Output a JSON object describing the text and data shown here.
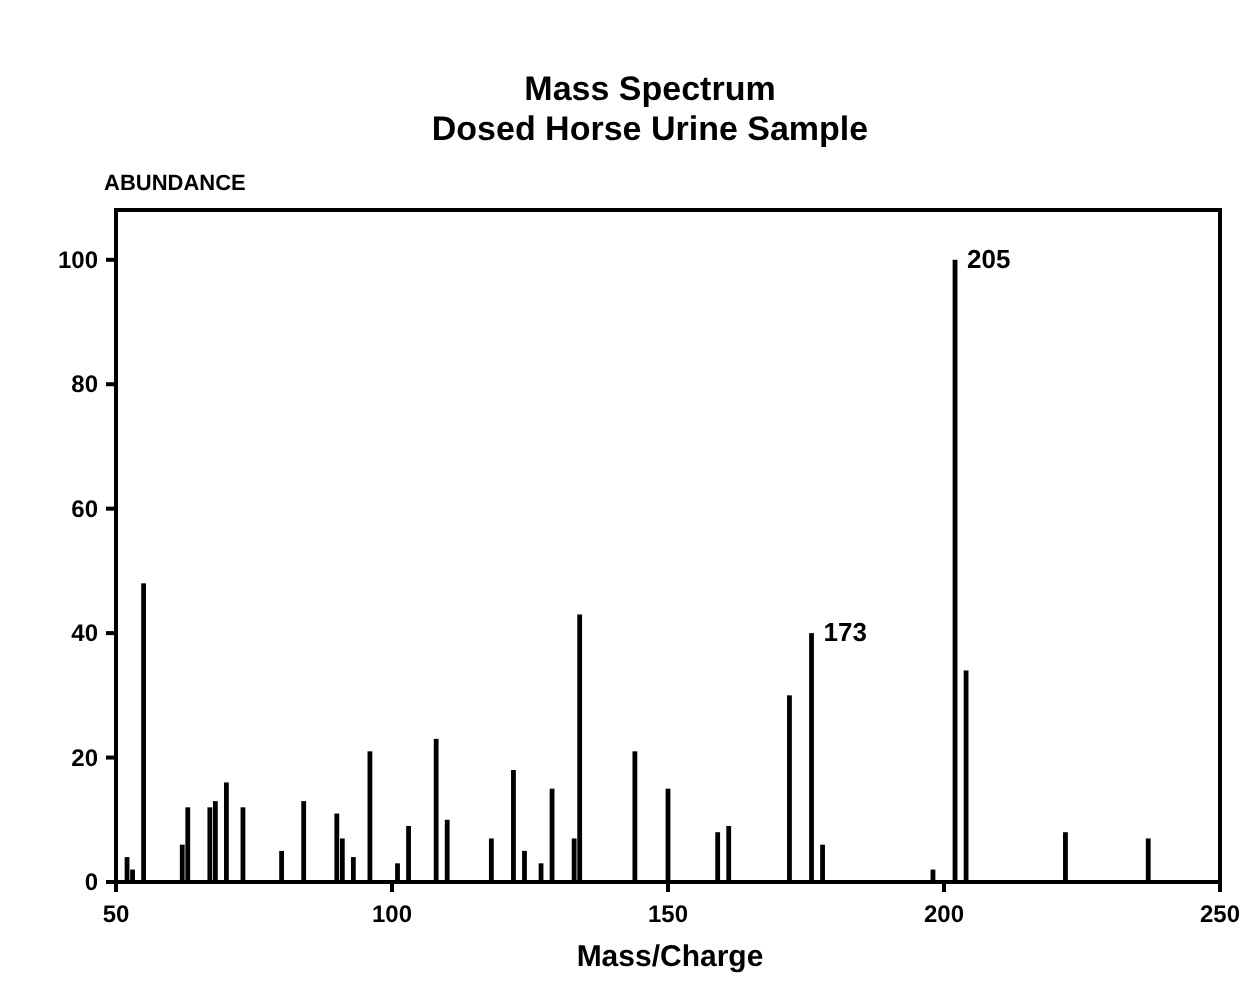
{
  "chart_data": {
    "type": "bar",
    "title": "Mass Spectrum",
    "subtitle": "Dosed Horse Urine Sample",
    "xlabel": "Mass/Charge",
    "ylabel": "ABUNDANCE",
    "x": [
      52,
      53,
      55,
      62,
      63,
      67,
      68,
      70,
      73,
      80,
      84,
      90,
      91,
      93,
      96,
      101,
      103,
      108,
      110,
      118,
      122,
      124,
      127,
      129,
      133,
      134,
      144,
      150,
      159,
      161,
      172,
      176,
      178,
      198,
      202,
      204,
      222,
      237
    ],
    "values": [
      4,
      2,
      48,
      6,
      12,
      12,
      13,
      16,
      12,
      5,
      13,
      11,
      7,
      4,
      21,
      3,
      9,
      23,
      10,
      7,
      18,
      5,
      3,
      15,
      7,
      43,
      21,
      15,
      8,
      9,
      30,
      40,
      6,
      2,
      100,
      34,
      8,
      7
    ],
    "color": "#000000",
    "xlim": [
      50,
      250
    ],
    "xticks": [
      50,
      100,
      150,
      200,
      250
    ],
    "ylim": [
      0,
      108
    ],
    "yticks": [
      0,
      20,
      40,
      60,
      80,
      100
    ],
    "annotations": [
      {
        "text": "173",
        "x": 176,
        "y": 40
      },
      {
        "text": "205",
        "x": 202,
        "y": 100
      }
    ]
  }
}
